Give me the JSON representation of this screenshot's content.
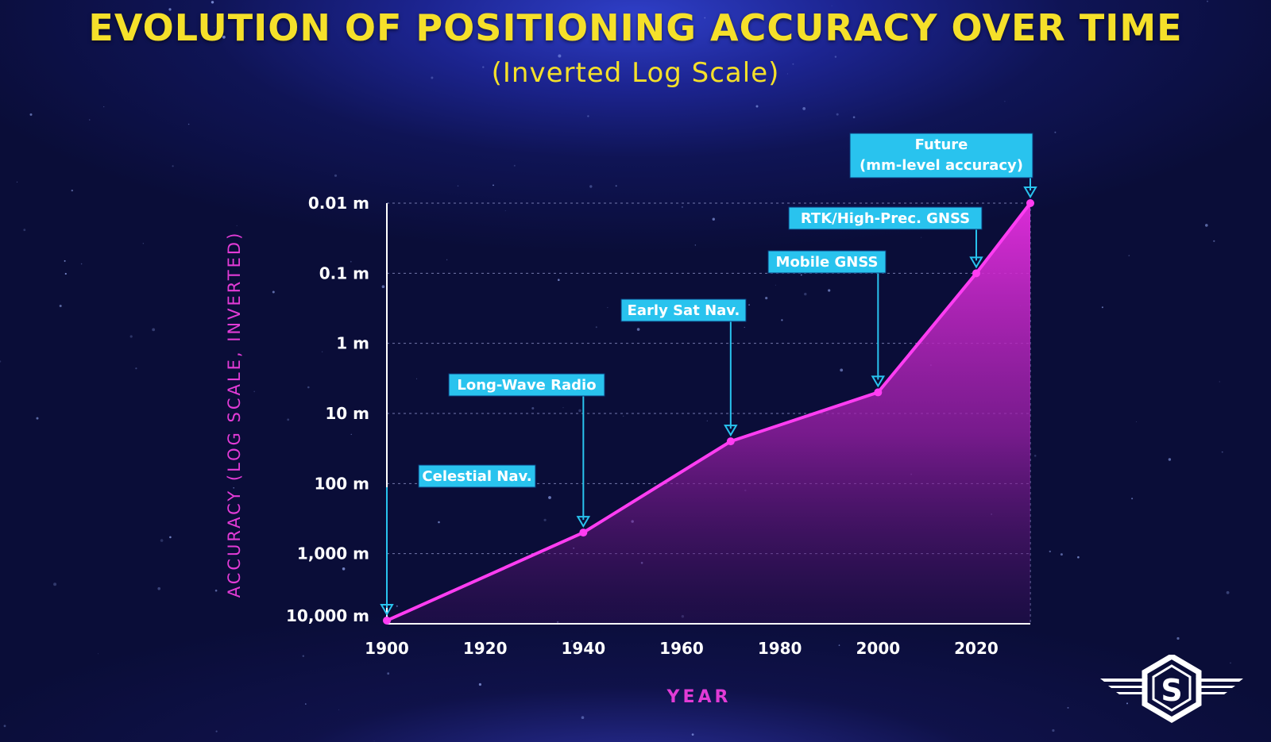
{
  "title": "EVOLUTION OF POSITIONING ACCURACY OVER TIME",
  "subtitle": "(Inverted Log Scale)",
  "colors": {
    "title": "#f5e02a",
    "line": "#ff3df2",
    "axis_label": "#e23bd6",
    "annotation_bg": "#29c3ee",
    "annotation_border": "#0a3a7a",
    "tick_text": "#ffffff"
  },
  "chart_data": {
    "type": "area",
    "title": "EVOLUTION OF POSITIONING ACCURACY OVER TIME",
    "subtitle": "(Inverted Log Scale)",
    "xlabel": "YEAR",
    "ylabel": "ACCURACY (LOG SCALE, INVERTED)",
    "y_scale": "log, inverted",
    "xlim": [
      1900,
      2031
    ],
    "x_ticks": [
      {
        "value": 1900,
        "label": "1900"
      },
      {
        "value": 1920,
        "label": "1920"
      },
      {
        "value": 1940,
        "label": "1940"
      },
      {
        "value": 1960,
        "label": "1960"
      },
      {
        "value": 1980,
        "label": "1980"
      },
      {
        "value": 2000,
        "label": "2000"
      },
      {
        "value": 2020,
        "label": "2020"
      }
    ],
    "y_ticks": [
      {
        "value": 0.01,
        "label": "0.01 m"
      },
      {
        "value": 0.1,
        "label": "0.1 m"
      },
      {
        "value": 1,
        "label": "1 m"
      },
      {
        "value": 10,
        "label": "10 m"
      },
      {
        "value": 100,
        "label": "100 m"
      },
      {
        "value": 1000,
        "label": "1,000 m"
      },
      {
        "value": 10000,
        "label": "10,000 m"
      }
    ],
    "grid": true,
    "points": [
      {
        "x": 1900,
        "y": 9000
      },
      {
        "x": 1940,
        "y": 500
      },
      {
        "x": 1970,
        "y": 25
      },
      {
        "x": 2000,
        "y": 5
      },
      {
        "x": 2020,
        "y": 0.1
      },
      {
        "x": 2031,
        "y": 0.01
      }
    ],
    "annotations": [
      {
        "label": "Celestial Nav.",
        "point": 0
      },
      {
        "label": "Long-Wave Radio",
        "point": 1
      },
      {
        "label": "Early Sat Nav.",
        "point": 2
      },
      {
        "label": "Mobile GNSS",
        "point": 3
      },
      {
        "label": "RTK/High-Prec. GNSS",
        "point": 4
      },
      {
        "label": "Future\n(mm-level accuracy)",
        "point": 5
      }
    ]
  }
}
